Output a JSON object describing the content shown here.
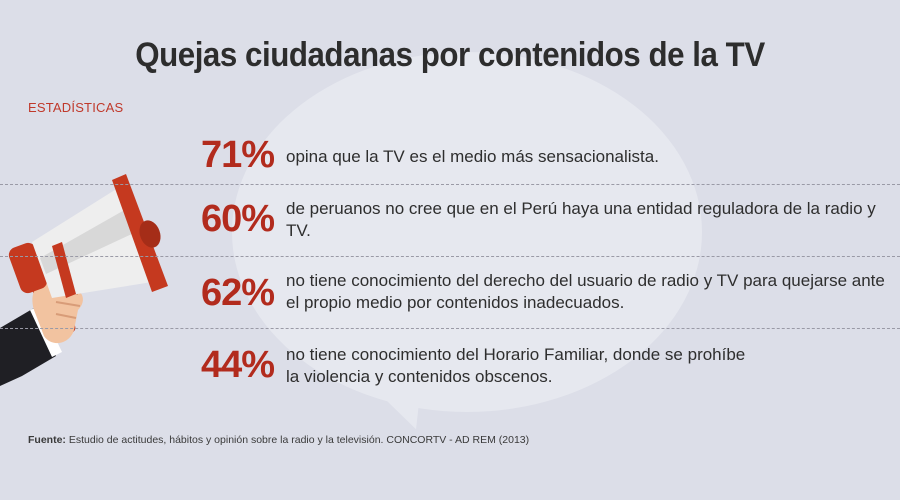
{
  "title": "Quejas ciudadanas por contenidos de la TV",
  "section_label": "ESTADÍSTICAS",
  "stats": [
    {
      "percent": "71%",
      "text": "opina que la TV es el medio más sensacionalista."
    },
    {
      "percent": "60%",
      "text": "de peruanos no cree que en el Perú haya una entidad reguladora de la radio y TV."
    },
    {
      "percent": "62%",
      "text": "no tiene conocimiento del derecho del usuario de radio y TV para quejarse ante el propio medio por contenidos inadecuados."
    },
    {
      "percent": "44%",
      "text": "no tiene conocimiento del Horario Familiar, donde se prohíbe la violencia y contenidos obscenos."
    }
  ],
  "source": {
    "label": "Fuente:",
    "text": "Estudio de actitudes, hábitos y opinión sobre la radio y la televisión. CONCORTV - AD REM (2013)"
  },
  "colors": {
    "accent_red": "#b22b1d",
    "background": "#dcdee8",
    "bubble": "#e6e8ef"
  },
  "icons": [
    "megaphone-icon",
    "speech-bubble-icon"
  ]
}
